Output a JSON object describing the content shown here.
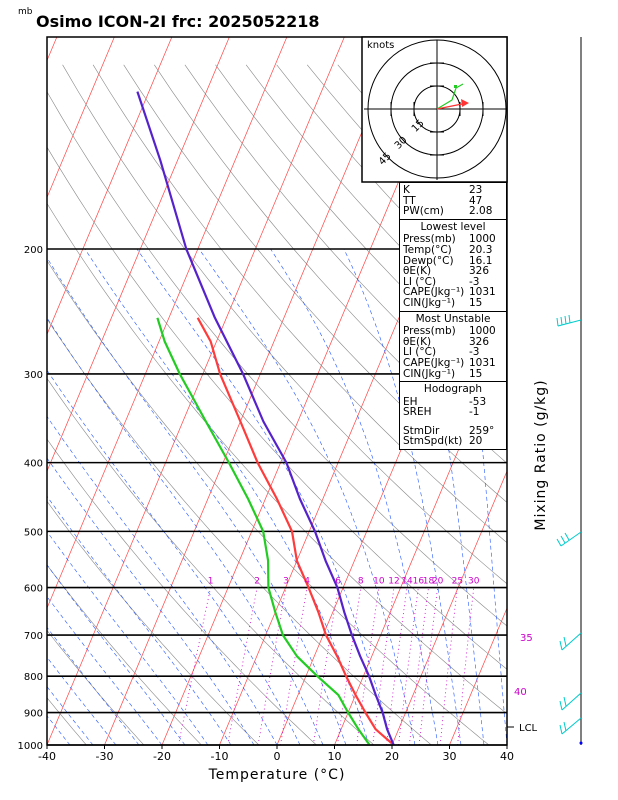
{
  "title": "Osimo ICON-2I frc: 2025052218",
  "y_unit": "mb",
  "x_axis_label": "Temperature (°C)",
  "right_axis_label": "Mixing Ratio (g/kg)",
  "x_ticks": [
    "-40",
    "-30",
    "-20",
    "-10",
    "0",
    "10",
    "20",
    "30",
    "40"
  ],
  "p_ticks": [
    "200",
    "300",
    "400",
    "500",
    "600",
    "700",
    "800",
    "900",
    "1000"
  ],
  "mixing_ratio_labels": [
    "1",
    "2",
    "3",
    "4",
    "6",
    "8",
    "10",
    "12",
    "14",
    "16",
    "18",
    "20",
    "25",
    "30"
  ],
  "theta_e_labels": [
    "35",
    "40"
  ],
  "lcl_label": "LCL",
  "hodograph": {
    "unit_label": "knots",
    "ring_labels": [
      "15",
      "30",
      "45"
    ]
  },
  "stats": {
    "top": [
      [
        "K",
        "23"
      ],
      [
        "TT",
        "47"
      ],
      [
        "PW(cm)",
        "2.08"
      ]
    ],
    "lowest_level": {
      "title": "Lowest level",
      "rows": [
        [
          "Press(mb)",
          "1000"
        ],
        [
          "Temp(°C)",
          "20.3"
        ],
        [
          "Dewp(°C)",
          "16.1"
        ],
        [
          "θE(K)",
          "326"
        ],
        [
          "LI (°C)",
          "-3"
        ],
        [
          "CAPE(Jkg⁻¹)",
          "1031"
        ],
        [
          "CIN(Jkg⁻¹)",
          "15"
        ]
      ]
    },
    "most_unstable": {
      "title": "Most Unstable",
      "rows": [
        [
          "Press(mb)",
          "1000"
        ],
        [
          "θE(K)",
          "326"
        ],
        [
          "LI (°C)",
          "-3"
        ],
        [
          "CAPE(Jkg⁻¹)",
          "1031"
        ],
        [
          "CIN(Jkg⁻¹)",
          "15"
        ]
      ]
    },
    "hodograph": {
      "title": "Hodograph",
      "rows": [
        [
          "EH",
          "-53"
        ],
        [
          "SREH",
          "-1"
        ]
      ],
      "rows2": [
        [
          "StmDir",
          "259°"
        ],
        [
          "StmSpd(kt)",
          "20"
        ]
      ]
    }
  },
  "colors": {
    "temperature": "#ff3b3b",
    "dewpoint": "#22cc22",
    "parcel": "#5522cc",
    "isotherm": "#ff4444",
    "dry_adiabat": "#888888",
    "moist_adiabat": "#2255ff",
    "mixing_ratio": "#cc00cc",
    "wind_barb": "#00cccc"
  },
  "chart_data": {
    "type": "line",
    "title": "Osimo ICON-2I frc: 2025052218",
    "xlabel": "Temperature (°C)",
    "ylabel": "mb",
    "xlim": [
      -40,
      40
    ],
    "ylim": [
      1000,
      100
    ],
    "y_scale": "log",
    "series": [
      {
        "name": "Temperature",
        "points": [
          [
            1000,
            20.3
          ],
          [
            950,
            16
          ],
          [
            900,
            13
          ],
          [
            850,
            10
          ],
          [
            800,
            7
          ],
          [
            750,
            4
          ],
          [
            700,
            0.5
          ],
          [
            650,
            -2.5
          ],
          [
            600,
            -6
          ],
          [
            550,
            -10
          ],
          [
            500,
            -13
          ],
          [
            450,
            -18
          ],
          [
            400,
            -24
          ],
          [
            350,
            -30
          ],
          [
            300,
            -37
          ],
          [
            270,
            -41
          ],
          [
            250,
            -45
          ]
        ]
      },
      {
        "name": "Dewpoint",
        "points": [
          [
            1000,
            16.1
          ],
          [
            950,
            13
          ],
          [
            900,
            10
          ],
          [
            850,
            7
          ],
          [
            800,
            2
          ],
          [
            750,
            -3
          ],
          [
            700,
            -7
          ],
          [
            650,
            -10
          ],
          [
            600,
            -13
          ],
          [
            550,
            -15
          ],
          [
            500,
            -18
          ],
          [
            450,
            -23
          ],
          [
            400,
            -29
          ],
          [
            350,
            -36
          ],
          [
            300,
            -44
          ],
          [
            270,
            -49
          ],
          [
            250,
            -52
          ]
        ]
      },
      {
        "name": "Parcel",
        "points": [
          [
            1000,
            20.3
          ],
          [
            950,
            18
          ],
          [
            900,
            16
          ],
          [
            850,
            13.5
          ],
          [
            800,
            11
          ],
          [
            750,
            8
          ],
          [
            700,
            5
          ],
          [
            650,
            2
          ],
          [
            600,
            -1
          ],
          [
            550,
            -5
          ],
          [
            500,
            -9
          ],
          [
            450,
            -14
          ],
          [
            400,
            -19
          ],
          [
            350,
            -26
          ],
          [
            300,
            -33
          ],
          [
            250,
            -42
          ],
          [
            200,
            -52
          ],
          [
            150,
            -63
          ],
          [
            120,
            -72
          ]
        ]
      }
    ],
    "mixing_ratio_gkg": [
      1,
      2,
      3,
      4,
      6,
      8,
      10,
      12,
      14,
      16,
      18,
      20,
      25,
      30
    ],
    "hodograph": {
      "rings_kt": [
        15,
        30,
        45
      ],
      "storm_motion": {
        "dir_deg": 259,
        "speed_kt": 20
      }
    },
    "lcl_hpa": 975
  }
}
